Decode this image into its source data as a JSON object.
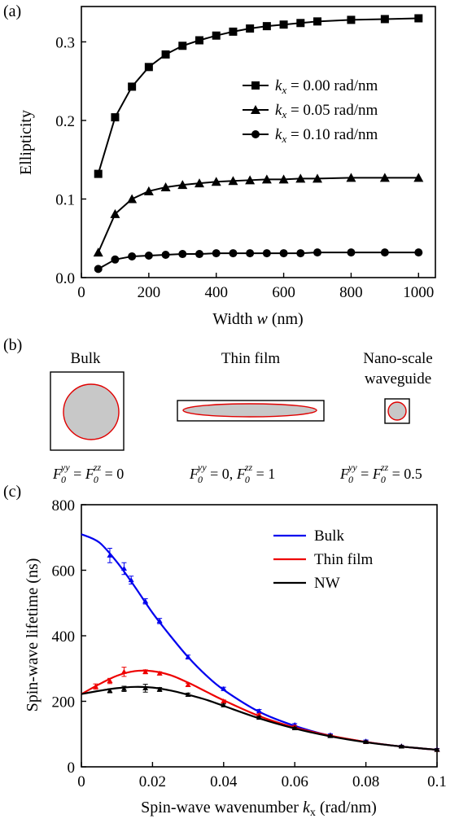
{
  "panels": {
    "a_label": "(a)",
    "b_label": "(b)",
    "c_label": "(c)"
  },
  "chart_data": [
    {
      "type": "line",
      "panel": "(a)",
      "xlabel": "Width w (nm)",
      "ylabel": "Ellipticity",
      "xlim": [
        0,
        1050
      ],
      "ylim": [
        0,
        0.345
      ],
      "xticks": [
        0,
        200,
        400,
        600,
        800,
        1000
      ],
      "yticks": [
        0.0,
        0.1,
        0.2,
        0.3
      ],
      "ytick_labels": [
        "0.0",
        "0.1",
        "0.2",
        "0.3"
      ],
      "legend_position": "right",
      "series": [
        {
          "name": "k_x = 0.00 rad/nm",
          "marker": "square",
          "x": [
            50,
            100,
            150,
            200,
            250,
            300,
            350,
            400,
            450,
            500,
            550,
            600,
            650,
            700,
            800,
            900,
            1000
          ],
          "values": [
            0.132,
            0.204,
            0.243,
            0.268,
            0.284,
            0.295,
            0.302,
            0.308,
            0.313,
            0.317,
            0.32,
            0.322,
            0.324,
            0.326,
            0.328,
            0.329,
            0.33
          ]
        },
        {
          "name": "k_x = 0.05 rad/nm",
          "marker": "triangle",
          "x": [
            50,
            100,
            150,
            200,
            250,
            300,
            350,
            400,
            450,
            500,
            550,
            600,
            650,
            700,
            800,
            900,
            1000
          ],
          "values": [
            0.032,
            0.081,
            0.1,
            0.11,
            0.115,
            0.118,
            0.12,
            0.122,
            0.123,
            0.124,
            0.125,
            0.125,
            0.126,
            0.126,
            0.127,
            0.127,
            0.127
          ]
        },
        {
          "name": "k_x = 0.10 rad/nm",
          "marker": "circle",
          "x": [
            50,
            100,
            150,
            200,
            250,
            300,
            350,
            400,
            450,
            500,
            550,
            600,
            650,
            700,
            800,
            900,
            1000
          ],
          "values": [
            0.011,
            0.023,
            0.027,
            0.028,
            0.029,
            0.03,
            0.03,
            0.031,
            0.031,
            0.031,
            0.031,
            0.031,
            0.031,
            0.032,
            0.032,
            0.032,
            0.032
          ]
        }
      ],
      "legend": {
        "k": "k",
        "sub": "x",
        "entries": [
          " = 0.00 rad/nm",
          " = 0.05 rad/nm",
          " = 0.10 rad/nm"
        ]
      },
      "axis_text": {
        "xlabel_pre": "Width ",
        "xlabel_var": "w",
        "xlabel_post": " (nm)"
      }
    },
    {
      "type": "line",
      "panel": "(c)",
      "xlabel": "Spin-wave wavenumber k_x (rad/nm)",
      "ylabel": "Spin-wave lifetime (ns)",
      "xlim": [
        0,
        0.1
      ],
      "ylim": [
        0,
        800
      ],
      "xticks": [
        0,
        0.02,
        0.04,
        0.06,
        0.08,
        0.1
      ],
      "xtick_labels": [
        "0",
        "0.02",
        "0.04",
        "0.06",
        "0.08",
        "0.1"
      ],
      "yticks": [
        0,
        200,
        400,
        600,
        800
      ],
      "legend_position": "top-right",
      "series": [
        {
          "name": "Bulk",
          "color": "#0000ee",
          "curve_x": [
            0,
            0.005,
            0.01,
            0.015,
            0.02,
            0.025,
            0.03,
            0.035,
            0.04,
            0.05,
            0.06,
            0.07,
            0.08,
            0.09,
            0.1
          ],
          "curve_y": [
            710,
            685,
            625,
            550,
            470,
            400,
            335,
            280,
            235,
            168,
            125,
            95,
            76,
            62,
            52
          ],
          "points_x": [
            0.008,
            0.012,
            0.014,
            0.018,
            0.022,
            0.03,
            0.04,
            0.05,
            0.06,
            0.07,
            0.08,
            0.09,
            0.1
          ],
          "points_y": [
            645,
            605,
            570,
            505,
            445,
            335,
            238,
            170,
            128,
            97,
            78,
            63,
            53
          ],
          "errors": [
            22,
            18,
            12,
            8,
            8,
            6,
            5,
            5,
            4,
            4,
            4,
            3,
            3
          ]
        },
        {
          "name": "Thin film",
          "color": "#ee0000",
          "curve_x": [
            0,
            0.005,
            0.01,
            0.015,
            0.02,
            0.025,
            0.03,
            0.035,
            0.04,
            0.05,
            0.06,
            0.07,
            0.08,
            0.09,
            0.1
          ],
          "curve_y": [
            222,
            252,
            278,
            292,
            292,
            280,
            257,
            230,
            203,
            155,
            120,
            95,
            76,
            62,
            52
          ],
          "points_x": [
            0.004,
            0.008,
            0.012,
            0.018,
            0.022,
            0.03,
            0.04,
            0.05,
            0.06,
            0.07,
            0.08,
            0.09,
            0.1
          ],
          "points_y": [
            245,
            262,
            290,
            290,
            285,
            250,
            200,
            158,
            122,
            95,
            76,
            62,
            52
          ],
          "errors": [
            8,
            8,
            14,
            6,
            5,
            5,
            4,
            4,
            4,
            3,
            3,
            3,
            3
          ]
        },
        {
          "name": "NW",
          "color": "#000000",
          "curve_x": [
            0,
            0.005,
            0.01,
            0.015,
            0.02,
            0.025,
            0.03,
            0.035,
            0.04,
            0.05,
            0.06,
            0.07,
            0.08,
            0.09,
            0.1
          ],
          "curve_y": [
            222,
            232,
            240,
            244,
            242,
            233,
            220,
            205,
            186,
            148,
            117,
            93,
            75,
            62,
            52
          ],
          "points_x": [
            0.008,
            0.012,
            0.018,
            0.022,
            0.03,
            0.04,
            0.05,
            0.06,
            0.07,
            0.08,
            0.09,
            0.1
          ],
          "points_y": [
            232,
            238,
            240,
            236,
            220,
            188,
            150,
            118,
            94,
            76,
            62,
            52
          ],
          "errors": [
            6,
            8,
            12,
            6,
            5,
            4,
            4,
            3,
            3,
            3,
            3,
            3
          ]
        }
      ],
      "axis_text": {
        "xlabel_pre": "Spin-wave wavenumber ",
        "xlabel_var": "k",
        "xlabel_sub": "x",
        "xlabel_post": " (rad/nm)"
      }
    }
  ],
  "geometry_panel": {
    "titles": [
      "Bulk",
      "Thin film",
      "Nano-scale",
      "waveguide"
    ],
    "outline_color": "#000000",
    "cross_section_color": "#e00000",
    "fill_color": "#c8c8c8",
    "formulas": {
      "F": "F",
      "zero": "0",
      "yy": "yy",
      "zz": "zz",
      "bulk_rhs": " = 0",
      "film_mid": " = 0,  ",
      "film_rhs": " = 1",
      "nw_rhs": " = 0.5",
      "eq": " = "
    }
  }
}
